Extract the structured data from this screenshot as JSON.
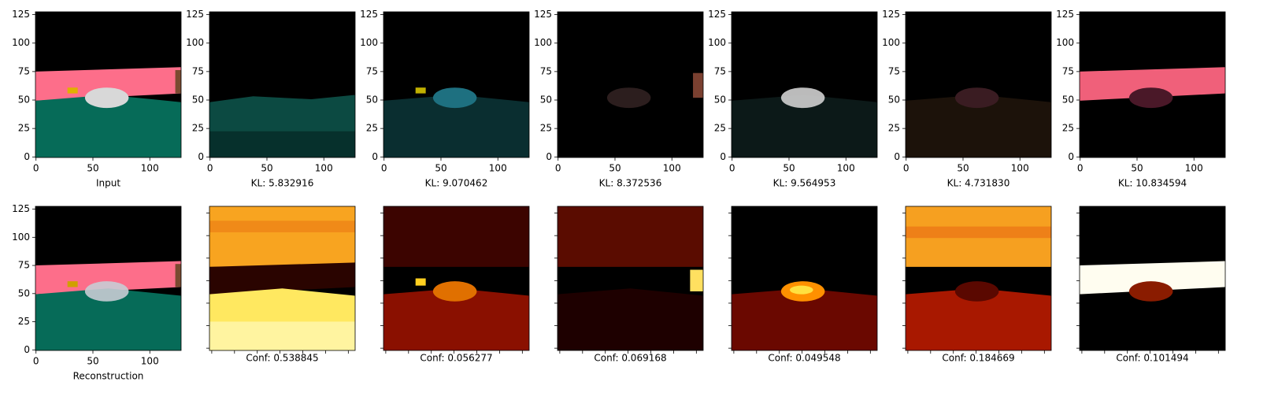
{
  "chart_data": [
    {
      "type": "image",
      "xlabel": "Input",
      "xlim": [
        -0.5,
        127.5
      ],
      "ylim": [
        127.5,
        -0.5
      ],
      "xticks": [
        0,
        50,
        100
      ],
      "yticks": [
        0,
        25,
        50,
        75,
        100,
        125
      ],
      "tick_labels": true
    },
    {
      "type": "image",
      "xlabel": "KL: 5.832916",
      "xlim": [
        -0.5,
        127.5
      ],
      "ylim": [
        127.5,
        -0.5
      ],
      "xticks": [
        0,
        50,
        100
      ],
      "yticks": [
        0,
        25,
        50,
        75,
        100,
        125
      ],
      "tick_labels": true
    },
    {
      "type": "image",
      "xlabel": "KL: 9.070462",
      "xlim": [
        -0.5,
        127.5
      ],
      "ylim": [
        127.5,
        -0.5
      ],
      "xticks": [
        0,
        50,
        100
      ],
      "yticks": [
        0,
        25,
        50,
        75,
        100,
        125
      ],
      "tick_labels": true
    },
    {
      "type": "image",
      "xlabel": "KL: 8.372536",
      "xlim": [
        -0.5,
        127.5
      ],
      "ylim": [
        127.5,
        -0.5
      ],
      "xticks": [
        0,
        50,
        100
      ],
      "yticks": [
        0,
        25,
        50,
        75,
        100,
        125
      ],
      "tick_labels": true
    },
    {
      "type": "image",
      "xlabel": "KL: 9.564953",
      "xlim": [
        -0.5,
        127.5
      ],
      "ylim": [
        127.5,
        -0.5
      ],
      "xticks": [
        0,
        50,
        100
      ],
      "yticks": [
        0,
        25,
        50,
        75,
        100,
        125
      ],
      "tick_labels": true
    },
    {
      "type": "image",
      "xlabel": "KL: 4.731830",
      "xlim": [
        -0.5,
        127.5
      ],
      "ylim": [
        127.5,
        -0.5
      ],
      "xticks": [
        0,
        50,
        100
      ],
      "yticks": [
        0,
        25,
        50,
        75,
        100,
        125
      ],
      "tick_labels": true
    },
    {
      "type": "image",
      "xlabel": "KL: 10.834594",
      "xlim": [
        -0.5,
        127.5
      ],
      "ylim": [
        127.5,
        -0.5
      ],
      "xticks": [
        0,
        50,
        100
      ],
      "yticks": [
        0,
        25,
        50,
        75,
        100,
        125
      ],
      "tick_labels": true
    },
    {
      "type": "image",
      "xlabel": "Reconstruction",
      "xlim": [
        -0.5,
        127.5
      ],
      "ylim": [
        127.5,
        -0.5
      ],
      "xticks": [
        0,
        50,
        100
      ],
      "yticks": [
        0,
        25,
        50,
        75,
        100,
        125
      ],
      "tick_labels": true
    },
    {
      "type": "heatmap",
      "xlabel": "Conf: 0.538845",
      "xlim": [
        -0.5,
        31.5
      ],
      "ylim": [
        31.5,
        -0.5
      ],
      "xticks": [
        0,
        5,
        10,
        15,
        20,
        25,
        30
      ],
      "yticks": [
        0,
        5,
        10,
        15,
        20,
        25,
        30
      ],
      "tick_labels": false
    },
    {
      "type": "heatmap",
      "xlabel": "Conf: 0.056277",
      "xlim": [
        -0.5,
        31.5
      ],
      "ylim": [
        31.5,
        -0.5
      ],
      "xticks": [
        0,
        5,
        10,
        15,
        20,
        25,
        30
      ],
      "yticks": [
        0,
        5,
        10,
        15,
        20,
        25,
        30
      ],
      "tick_labels": false
    },
    {
      "type": "heatmap",
      "xlabel": "Conf: 0.069168",
      "xlim": [
        -0.5,
        31.5
      ],
      "ylim": [
        31.5,
        -0.5
      ],
      "xticks": [
        0,
        5,
        10,
        15,
        20,
        25,
        30
      ],
      "yticks": [
        0,
        5,
        10,
        15,
        20,
        25,
        30
      ],
      "tick_labels": false
    },
    {
      "type": "heatmap",
      "xlabel": "Conf: 0.049548",
      "xlim": [
        -0.5,
        31.5
      ],
      "ylim": [
        31.5,
        -0.5
      ],
      "xticks": [
        0,
        5,
        10,
        15,
        20,
        25,
        30
      ],
      "yticks": [
        0,
        5,
        10,
        15,
        20,
        25,
        30
      ],
      "tick_labels": false
    },
    {
      "type": "heatmap",
      "xlabel": "Conf: 0.184669",
      "xlim": [
        -0.5,
        31.5
      ],
      "ylim": [
        31.5,
        -0.5
      ],
      "xticks": [
        0,
        5,
        10,
        15,
        20,
        25,
        30
      ],
      "yticks": [
        0,
        5,
        10,
        15,
        20,
        25,
        30
      ],
      "tick_labels": false
    },
    {
      "type": "heatmap",
      "xlabel": "Conf: 0.101494",
      "xlim": [
        -0.5,
        31.5
      ],
      "ylim": [
        31.5,
        -0.5
      ],
      "xticks": [
        0,
        5,
        10,
        15,
        20,
        25,
        30
      ],
      "yticks": [
        0,
        5,
        10,
        15,
        20,
        25,
        30
      ],
      "tick_labels": false
    }
  ]
}
